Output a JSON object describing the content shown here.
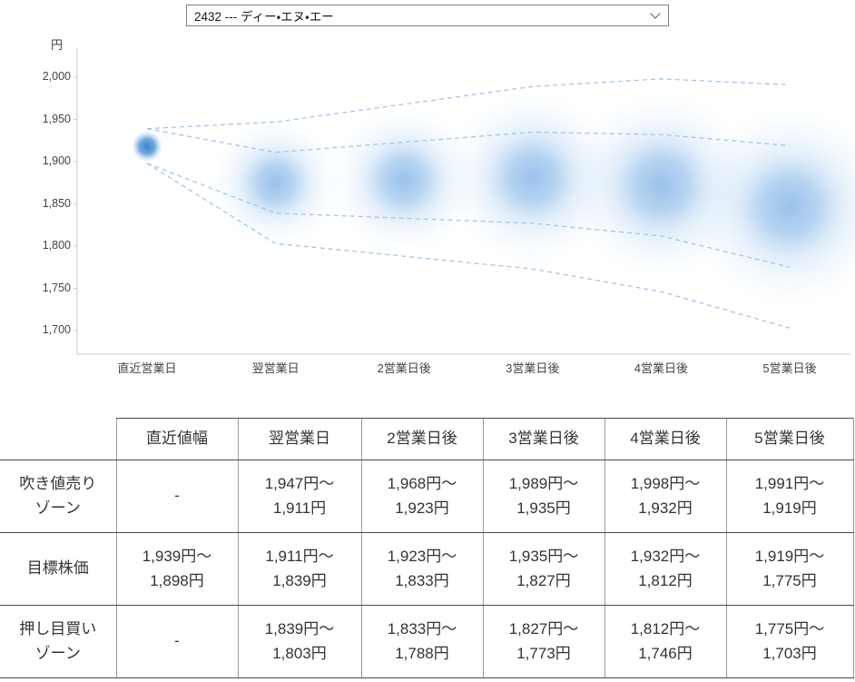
{
  "stock_selector": {
    "value": "2432 --- ディー・エヌ・エー"
  },
  "chart_data": {
    "type": "scatter",
    "subtype": "price-forecast-fan-with-probability-bubbles",
    "title": "",
    "xlabel": "",
    "ylabel": "円",
    "grid": false,
    "x_categories": [
      "直近営業日",
      "翌営業日",
      "2営業日後",
      "3営業日後",
      "4営業日後",
      "5営業日後"
    ],
    "y_ticks": [
      "2,000",
      "1,950",
      "1,900",
      "1,850",
      "1,800",
      "1,750",
      "1,700"
    ],
    "ylim": [
      1700,
      2000
    ],
    "colors": {
      "bubble": "#5e9fe0",
      "dot": "#2f7cc9",
      "fan_line": "#9cc3e8",
      "axis": "#c9c9c9"
    },
    "start_point": {
      "category": "直近営業日",
      "value": 1918,
      "range_high": 1939,
      "range_low": 1898,
      "radius_px": 17
    },
    "bubbles": [
      {
        "category": "翌営業日",
        "center": 1875,
        "radius_px": 72
      },
      {
        "category": "2営業日後",
        "center": 1878,
        "radius_px": 82
      },
      {
        "category": "3営業日後",
        "center": 1881,
        "radius_px": 96
      },
      {
        "category": "4営業日後",
        "center": 1872,
        "radius_px": 104
      },
      {
        "category": "5営業日後",
        "center": 1847,
        "radius_px": 112
      }
    ],
    "fan_lines": [
      {
        "name": "sell-zone-upper",
        "values": [
          1939,
          1947,
          1968,
          1989,
          1998,
          1991
        ]
      },
      {
        "name": "target-upper",
        "values": [
          1939,
          1911,
          1923,
          1935,
          1932,
          1919
        ]
      },
      {
        "name": "target-lower",
        "values": [
          1898,
          1839,
          1833,
          1827,
          1812,
          1775
        ]
      },
      {
        "name": "buy-zone-lower",
        "values": [
          1898,
          1803,
          1788,
          1773,
          1746,
          1703
        ]
      }
    ]
  },
  "table": {
    "headers": [
      "",
      "直近値幅",
      "翌営業日",
      "2営業日後",
      "3営業日後",
      "4営業日後",
      "5営業日後"
    ],
    "rows": [
      {
        "label": "吹き値売り\nゾーン",
        "cells": [
          "-",
          "1,947円～\n1,911円",
          "1,968円～\n1,923円",
          "1,989円～\n1,935円",
          "1,998円～\n1,932円",
          "1,991円～\n1,919円"
        ]
      },
      {
        "label": "目標株価",
        "cells": [
          "1,939円～\n1,898円",
          "1,911円～\n1,839円",
          "1,923円～\n1,833円",
          "1,935円～\n1,827円",
          "1,932円～\n1,812円",
          "1,919円～\n1,775円"
        ]
      },
      {
        "label": "押し目買い\nゾーン",
        "cells": [
          "-",
          "1,839円～\n1,803円",
          "1,833円～\n1,788円",
          "1,827円～\n1,773円",
          "1,812円～\n1,746円",
          "1,775円～\n1,703円"
        ]
      }
    ]
  }
}
